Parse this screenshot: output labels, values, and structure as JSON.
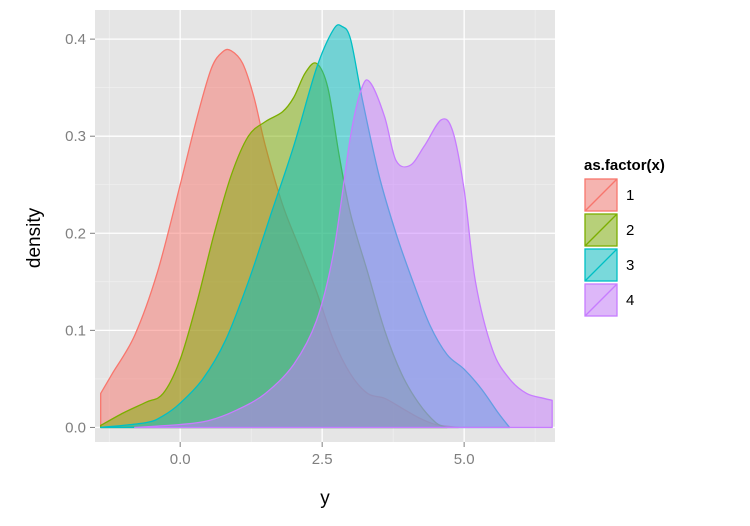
{
  "chart_data": {
    "type": "area",
    "xlabel": "y",
    "ylabel": "density",
    "xlim": [
      -1.5,
      6.6
    ],
    "ylim": [
      -0.015,
      0.43
    ],
    "x_ticks": [
      0.0,
      2.5,
      5.0
    ],
    "x_tick_labels": [
      "0.0",
      "2.5",
      "5.0"
    ],
    "y_ticks": [
      0.0,
      0.1,
      0.2,
      0.3,
      0.4
    ],
    "y_tick_labels": [
      "0.0",
      "0.1",
      "0.2",
      "0.3",
      "0.4"
    ],
    "grid": true,
    "legend_position": "right",
    "legend_title": "as.factor(x)",
    "fill_opacity": 0.5,
    "series": [
      {
        "name": "1",
        "color": "#F8766D",
        "points": [
          [
            -1.4,
            0.035
          ],
          [
            -1.2,
            0.055
          ],
          [
            -0.8,
            0.095
          ],
          [
            -0.4,
            0.16
          ],
          [
            0.0,
            0.25
          ],
          [
            0.3,
            0.32
          ],
          [
            0.55,
            0.37
          ],
          [
            0.75,
            0.387
          ],
          [
            0.9,
            0.388
          ],
          [
            1.1,
            0.375
          ],
          [
            1.3,
            0.34
          ],
          [
            1.5,
            0.29
          ],
          [
            1.8,
            0.23
          ],
          [
            2.1,
            0.185
          ],
          [
            2.4,
            0.14
          ],
          [
            2.7,
            0.09
          ],
          [
            3.0,
            0.055
          ],
          [
            3.3,
            0.035
          ],
          [
            3.6,
            0.03
          ],
          [
            3.9,
            0.02
          ],
          [
            4.2,
            0.01
          ],
          [
            4.5,
            0.003
          ],
          [
            4.9,
            0.0
          ]
        ]
      },
      {
        "name": "2",
        "color": "#7CAE00",
        "points": [
          [
            -1.4,
            0.002
          ],
          [
            -1.0,
            0.015
          ],
          [
            -0.6,
            0.026
          ],
          [
            -0.3,
            0.035
          ],
          [
            0.0,
            0.07
          ],
          [
            0.3,
            0.13
          ],
          [
            0.6,
            0.2
          ],
          [
            0.9,
            0.26
          ],
          [
            1.2,
            0.3
          ],
          [
            1.5,
            0.315
          ],
          [
            1.8,
            0.325
          ],
          [
            2.0,
            0.34
          ],
          [
            2.2,
            0.365
          ],
          [
            2.4,
            0.375
          ],
          [
            2.6,
            0.35
          ],
          [
            2.8,
            0.28
          ],
          [
            3.0,
            0.22
          ],
          [
            3.3,
            0.16
          ],
          [
            3.6,
            0.1
          ],
          [
            3.9,
            0.055
          ],
          [
            4.2,
            0.025
          ],
          [
            4.5,
            0.005
          ],
          [
            4.7,
            0.0
          ]
        ]
      },
      {
        "name": "3",
        "color": "#00BFC4",
        "points": [
          [
            -1.4,
            0.0
          ],
          [
            -0.6,
            0.005
          ],
          [
            -0.3,
            0.012
          ],
          [
            0.0,
            0.025
          ],
          [
            0.4,
            0.05
          ],
          [
            0.8,
            0.09
          ],
          [
            1.2,
            0.15
          ],
          [
            1.6,
            0.22
          ],
          [
            2.0,
            0.29
          ],
          [
            2.4,
            0.37
          ],
          [
            2.7,
            0.41
          ],
          [
            2.85,
            0.413
          ],
          [
            3.0,
            0.4
          ],
          [
            3.2,
            0.34
          ],
          [
            3.5,
            0.26
          ],
          [
            3.8,
            0.2
          ],
          [
            4.1,
            0.15
          ],
          [
            4.4,
            0.105
          ],
          [
            4.7,
            0.075
          ],
          [
            5.0,
            0.06
          ],
          [
            5.3,
            0.04
          ],
          [
            5.6,
            0.015
          ],
          [
            5.8,
            0.0
          ]
        ]
      },
      {
        "name": "4",
        "color": "#C77CFF",
        "points": [
          [
            -0.8,
            0.0
          ],
          [
            0.0,
            0.003
          ],
          [
            0.5,
            0.007
          ],
          [
            1.0,
            0.018
          ],
          [
            1.5,
            0.035
          ],
          [
            2.0,
            0.065
          ],
          [
            2.4,
            0.11
          ],
          [
            2.7,
            0.18
          ],
          [
            3.0,
            0.3
          ],
          [
            3.2,
            0.35
          ],
          [
            3.35,
            0.355
          ],
          [
            3.6,
            0.32
          ],
          [
            3.8,
            0.275
          ],
          [
            4.05,
            0.27
          ],
          [
            4.3,
            0.29
          ],
          [
            4.6,
            0.317
          ],
          [
            4.8,
            0.305
          ],
          [
            5.0,
            0.245
          ],
          [
            5.2,
            0.15
          ],
          [
            5.5,
            0.08
          ],
          [
            5.8,
            0.05
          ],
          [
            6.1,
            0.035
          ],
          [
            6.4,
            0.03
          ],
          [
            6.55,
            0.028
          ]
        ]
      }
    ]
  }
}
